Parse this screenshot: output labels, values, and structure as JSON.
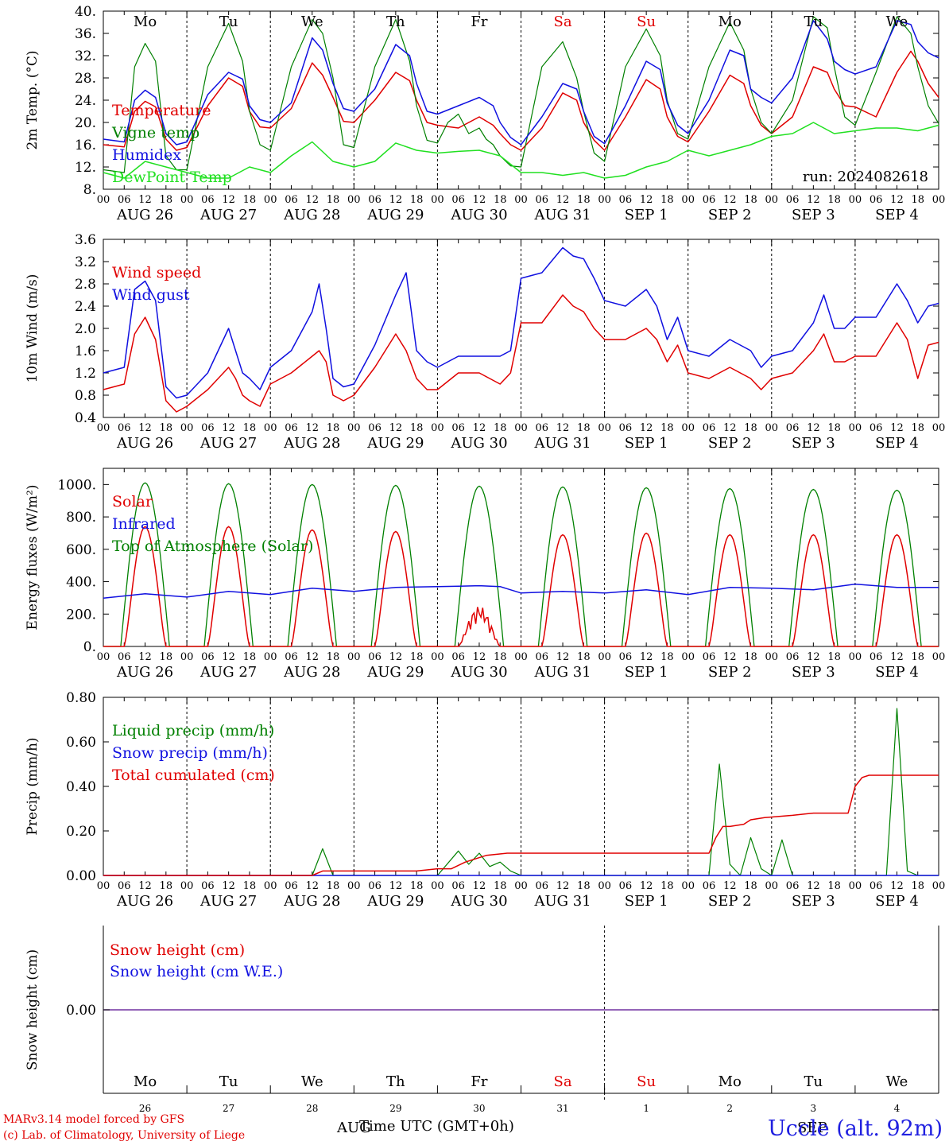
{
  "days": [
    "Mo",
    "Tu",
    "We",
    "Th",
    "Fr",
    "Sa",
    "Su",
    "Mo",
    "Tu",
    "We"
  ],
  "weekend_flags": [
    false,
    false,
    false,
    false,
    false,
    true,
    true,
    false,
    false,
    false
  ],
  "dates": [
    "AUG 26",
    "AUG 27",
    "AUG 28",
    "AUG 29",
    "AUG 30",
    "AUG 31",
    "SEP  1",
    "SEP  2",
    "SEP  3",
    "SEP  4"
  ],
  "day_numbers": [
    "26",
    "27",
    "28",
    "29",
    "30",
    "31",
    "1",
    "2",
    "3",
    "4"
  ],
  "hour_ticks": [
    "00",
    "06",
    "12",
    "18"
  ],
  "hour_end": "00",
  "colors": {
    "red": "#e00000",
    "green": "#008000",
    "blue": "#1010e0",
    "lightgreen": "#20e020",
    "purple": "#7030a0"
  },
  "run_label": "run: 2024082618",
  "footer": {
    "model": "MARv3.14 model forced by GFS",
    "credit": "(c) Lab. of Climatology, University of Liege",
    "aug": "AUG",
    "sep": "SEP",
    "time_label": "Time UTC (GMT+0h)",
    "station": "Uccle (alt. 92m)"
  },
  "chart_data": [
    {
      "type": "line",
      "ylabel": "2m Temp. (°C)",
      "ylim": [
        8,
        40
      ],
      "yticks": [
        "8.",
        "12.",
        "16.",
        "20.",
        "24.",
        "28.",
        "32.",
        "36.",
        "40."
      ],
      "legend": [
        "Temperature",
        "Vigne temp",
        "Humidex",
        "DewPoint Temp"
      ],
      "series": [
        {
          "name": "Temperature",
          "color": "red",
          "x_hours": [
            0,
            6,
            9,
            12,
            15,
            18,
            21,
            24,
            30,
            36,
            40,
            42,
            45,
            48,
            54,
            60,
            63,
            66,
            69,
            72,
            78,
            84,
            88,
            90,
            93,
            96,
            102,
            108,
            112,
            114,
            117,
            120,
            126,
            132,
            136,
            138,
            141,
            144,
            150,
            156,
            160,
            162,
            165,
            168,
            174,
            180,
            184,
            186,
            189,
            192,
            198,
            204,
            208,
            210,
            213,
            216,
            222,
            228,
            232,
            234,
            237,
            240
          ],
          "values": [
            16,
            15.6,
            22,
            23.8,
            22.8,
            17,
            15,
            15.5,
            23,
            28,
            26.5,
            22,
            19.2,
            19,
            22.5,
            30.7,
            28.5,
            24.5,
            20.2,
            20,
            24,
            29,
            27.5,
            24,
            20,
            19.5,
            19,
            21,
            19.5,
            18,
            16,
            15,
            19,
            25.3,
            24,
            20,
            16.8,
            15,
            21,
            27.7,
            26,
            21,
            17.5,
            16.5,
            22,
            28.5,
            27,
            23,
            19.5,
            18,
            21,
            30,
            29,
            26,
            23,
            22.8,
            21,
            29,
            32.8,
            31,
            27,
            24.5
          ]
        },
        {
          "name": "Vigne temp",
          "color": "green",
          "x_hours": [
            0,
            6,
            9,
            12,
            15,
            18,
            21,
            24,
            30,
            36,
            40,
            42,
            45,
            48,
            54,
            60,
            63,
            66,
            69,
            72,
            78,
            84,
            88,
            90,
            93,
            96,
            99,
            102,
            105,
            108,
            110,
            112,
            114,
            117,
            120,
            126,
            132,
            136,
            138,
            141,
            144,
            150,
            156,
            160,
            162,
            165,
            168,
            174,
            180,
            184,
            186,
            189,
            192,
            198,
            204,
            208,
            210,
            213,
            216,
            222,
            228,
            232,
            234,
            237,
            240
          ],
          "values": [
            11.5,
            11,
            30,
            34.2,
            31,
            14,
            11.5,
            11.5,
            30,
            37.8,
            31,
            22,
            16,
            15,
            30,
            38.5,
            36,
            28,
            16,
            15.5,
            30,
            38.5,
            31,
            23,
            16.8,
            16.3,
            20,
            21.5,
            18,
            19,
            17,
            16,
            14,
            12.2,
            12,
            30,
            34.5,
            28,
            22,
            14.5,
            13,
            30,
            36.8,
            32,
            24,
            18,
            17,
            30,
            38,
            33,
            26,
            20,
            18,
            24,
            39,
            37,
            30,
            21,
            19.5,
            29,
            39,
            36,
            30,
            23,
            19.8
          ]
        },
        {
          "name": "Humidex",
          "color": "blue",
          "x_hours": [
            0,
            6,
            9,
            12,
            15,
            18,
            21,
            24,
            30,
            36,
            40,
            42,
            45,
            48,
            54,
            60,
            63,
            66,
            69,
            72,
            78,
            84,
            88,
            90,
            93,
            96,
            102,
            108,
            112,
            114,
            117,
            120,
            126,
            132,
            136,
            138,
            141,
            144,
            150,
            156,
            160,
            162,
            165,
            168,
            174,
            180,
            184,
            186,
            189,
            192,
            198,
            204,
            208,
            210,
            213,
            216,
            222,
            228,
            232,
            234,
            237,
            240
          ],
          "values": [
            17,
            16.5,
            24,
            25.8,
            24.5,
            18,
            16,
            16.5,
            25,
            29,
            27.8,
            23,
            20.5,
            20,
            23.5,
            35.2,
            33,
            27,
            22.5,
            22,
            26,
            34,
            32,
            27,
            22,
            21.5,
            23,
            24.5,
            23,
            20,
            17.3,
            16,
            21,
            27,
            26,
            22,
            17.5,
            16.2,
            23,
            31,
            29.5,
            23.5,
            19.5,
            18,
            24,
            33,
            32,
            26,
            24.5,
            23.5,
            28,
            38.3,
            35,
            31,
            29.5,
            28.7,
            30,
            38.3,
            37.6,
            34.5,
            32.5,
            31.6
          ]
        },
        {
          "name": "DewPoint Temp",
          "color": "lightgreen",
          "x_hours": [
            0,
            6,
            12,
            18,
            24,
            30,
            36,
            42,
            48,
            54,
            60,
            66,
            72,
            78,
            84,
            90,
            96,
            102,
            108,
            114,
            120,
            126,
            132,
            138,
            144,
            150,
            156,
            162,
            168,
            174,
            180,
            186,
            192,
            198,
            204,
            210,
            216,
            222,
            228,
            234,
            240
          ],
          "values": [
            11,
            10,
            13,
            12,
            11,
            10,
            10,
            12,
            11,
            14,
            16.5,
            13,
            12,
            13,
            16.3,
            15,
            14.5,
            14.8,
            15,
            14,
            11,
            11,
            10.5,
            11,
            10,
            10.5,
            12,
            13,
            15,
            14,
            15,
            16,
            17.5,
            18,
            20,
            18,
            18.5,
            19,
            19,
            18.5,
            19.5
          ]
        }
      ]
    },
    {
      "type": "line",
      "ylabel": "10m Wind (m/s)",
      "ylim": [
        0.4,
        3.6
      ],
      "yticks": [
        "0.4",
        "0.8",
        "1.2",
        "1.6",
        "2.0",
        "2.4",
        "2.8",
        "3.2",
        "3.6"
      ],
      "legend": [
        "Wind speed",
        "Wind gust"
      ],
      "series": [
        {
          "name": "Wind speed",
          "color": "red",
          "x_hours": [
            0,
            6,
            9,
            12,
            15,
            18,
            21,
            24,
            30,
            36,
            38,
            40,
            42,
            45,
            48,
            54,
            60,
            62,
            64,
            66,
            69,
            72,
            78,
            84,
            87,
            90,
            93,
            96,
            102,
            108,
            114,
            117,
            120,
            126,
            132,
            135,
            138,
            141,
            144,
            150,
            156,
            159,
            162,
            165,
            168,
            174,
            180,
            183,
            186,
            189,
            192,
            198,
            204,
            207,
            210,
            213,
            216,
            222,
            228,
            231,
            234,
            237,
            240
          ],
          "values": [
            0.9,
            1.0,
            1.9,
            2.2,
            1.8,
            0.7,
            0.5,
            0.6,
            0.9,
            1.3,
            1.1,
            0.8,
            0.7,
            0.6,
            1.0,
            1.2,
            1.5,
            1.6,
            1.4,
            0.8,
            0.7,
            0.8,
            1.3,
            1.9,
            1.6,
            1.1,
            0.9,
            0.9,
            1.2,
            1.2,
            1.0,
            1.2,
            2.1,
            2.1,
            2.6,
            2.4,
            2.3,
            2.0,
            1.8,
            1.8,
            2.0,
            1.8,
            1.4,
            1.7,
            1.2,
            1.1,
            1.3,
            1.2,
            1.1,
            0.9,
            1.1,
            1.2,
            1.6,
            1.9,
            1.4,
            1.4,
            1.5,
            1.5,
            2.1,
            1.8,
            1.1,
            1.7,
            1.75
          ]
        },
        {
          "name": "Wind gust",
          "color": "blue",
          "x_hours": [
            0,
            6,
            9,
            12,
            15,
            18,
            21,
            24,
            30,
            36,
            38,
            40,
            42,
            45,
            48,
            54,
            60,
            62,
            64,
            66,
            69,
            72,
            78,
            84,
            87,
            90,
            93,
            96,
            102,
            108,
            114,
            117,
            120,
            126,
            132,
            135,
            138,
            141,
            144,
            150,
            156,
            159,
            162,
            165,
            168,
            174,
            180,
            183,
            186,
            189,
            192,
            198,
            204,
            207,
            210,
            213,
            216,
            222,
            228,
            231,
            234,
            237,
            240
          ],
          "values": [
            1.2,
            1.3,
            2.7,
            2.85,
            2.5,
            0.95,
            0.75,
            0.8,
            1.2,
            2.0,
            1.6,
            1.2,
            1.1,
            0.9,
            1.3,
            1.6,
            2.3,
            2.8,
            2.0,
            1.1,
            0.95,
            1.0,
            1.7,
            2.6,
            3.0,
            1.6,
            1.4,
            1.3,
            1.5,
            1.5,
            1.5,
            1.6,
            2.9,
            3.0,
            3.45,
            3.3,
            3.25,
            2.9,
            2.5,
            2.4,
            2.7,
            2.4,
            1.8,
            2.2,
            1.6,
            1.5,
            1.8,
            1.7,
            1.6,
            1.3,
            1.5,
            1.6,
            2.1,
            2.6,
            2.0,
            2.0,
            2.2,
            2.2,
            2.8,
            2.5,
            2.1,
            2.4,
            2.45
          ]
        }
      ]
    },
    {
      "type": "line",
      "ylabel": "Energy fluxes (W/m²)",
      "ylim": [
        0,
        1100
      ],
      "yticks": [
        "0.",
        "200.",
        "400.",
        "600.",
        "800.",
        "1000."
      ],
      "legend": [
        "Solar",
        "Infrared",
        "Top of Atmosphere (Solar)"
      ],
      "solar_peaks": [
        740,
        740,
        720,
        710,
        250,
        690,
        700,
        690,
        690,
        690
      ],
      "toa_peaks": [
        1010,
        1005,
        1000,
        995,
        990,
        985,
        980,
        975,
        970,
        965
      ],
      "series": [
        {
          "name": "Infrared",
          "color": "blue",
          "x_hours": [
            0,
            12,
            24,
            36,
            48,
            60,
            72,
            84,
            96,
            102,
            108,
            114,
            120,
            132,
            144,
            156,
            168,
            180,
            192,
            204,
            216,
            228,
            240
          ],
          "values": [
            298,
            325,
            305,
            340,
            320,
            360,
            340,
            365,
            370,
            372,
            375,
            370,
            330,
            340,
            330,
            350,
            320,
            365,
            360,
            350,
            385,
            365,
            365
          ]
        }
      ]
    },
    {
      "type": "line",
      "ylabel": "Precip (mm/h)",
      "ylim": [
        0,
        0.8
      ],
      "yticks": [
        "0.00",
        "0.20",
        "0.40",
        "0.60",
        "0.80"
      ],
      "legend": [
        "Liquid precip (mm/h)",
        "Snow precip (mm/h)",
        "Total cumulated (cm)"
      ],
      "series": [
        {
          "name": "Liquid precip (mm/h)",
          "color": "green",
          "x_hours": [
            0,
            60,
            63,
            66,
            96,
            102,
            105,
            108,
            111,
            114,
            117,
            120,
            174,
            177,
            180,
            183,
            186,
            189,
            192,
            195,
            198,
            201,
            204,
            225,
            228,
            231,
            234,
            240
          ],
          "values": [
            0,
            0,
            0.12,
            0,
            0,
            0.11,
            0.05,
            0.1,
            0.04,
            0.06,
            0.02,
            0,
            0,
            0.5,
            0.05,
            0,
            0.17,
            0.03,
            0,
            0.16,
            0,
            0,
            0,
            0,
            0.75,
            0.02,
            0,
            0
          ]
        },
        {
          "name": "Snow precip (mm/h)",
          "color": "blue",
          "x_hours": [
            0,
            240
          ],
          "values": [
            0,
            0
          ]
        },
        {
          "name": "Total cumulated (cm)",
          "color": "red",
          "x_hours": [
            0,
            60,
            63,
            66,
            90,
            96,
            100,
            104,
            110,
            116,
            120,
            150,
            168,
            174,
            176,
            178,
            180,
            184,
            186,
            190,
            198,
            204,
            214,
            216,
            218,
            220,
            240
          ],
          "values": [
            0,
            0,
            0.02,
            0.02,
            0.02,
            0.03,
            0.03,
            0.06,
            0.09,
            0.1,
            0.1,
            0.1,
            0.1,
            0.1,
            0.17,
            0.22,
            0.22,
            0.23,
            0.25,
            0.26,
            0.27,
            0.28,
            0.28,
            0.4,
            0.44,
            0.45,
            0.45
          ]
        }
      ]
    },
    {
      "type": "line",
      "ylabel": "Snow height (cm)",
      "yticks": [
        "0.00"
      ],
      "legend": [
        "Snow height (cm)",
        "Snow height (cm W.E.)"
      ],
      "series": [
        {
          "name": "Snow height (cm)",
          "color": "red",
          "x_hours": [
            0,
            240
          ],
          "values": [
            0,
            0
          ]
        },
        {
          "name": "Snow height (cm W.E.)",
          "color": "blue",
          "x_hours": [
            0,
            240
          ],
          "values": [
            0,
            0
          ]
        }
      ]
    }
  ]
}
